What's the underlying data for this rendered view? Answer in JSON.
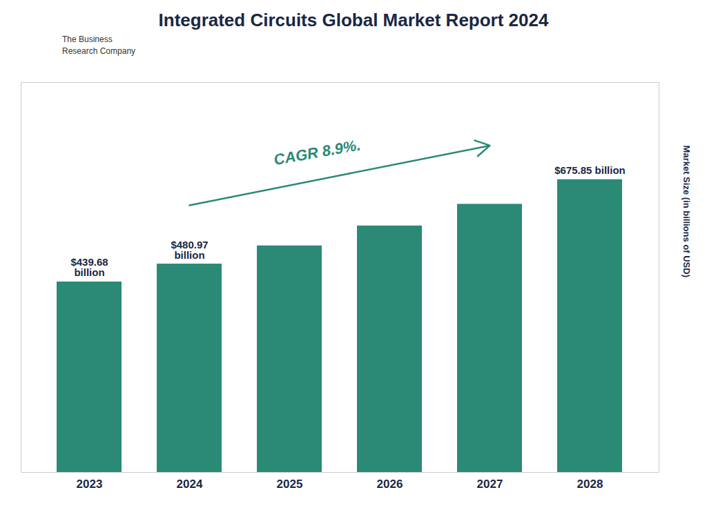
{
  "chart_data": {
    "type": "bar",
    "title": "Integrated Circuits Global Market Report 2024",
    "ylabel": "Market Size (in billions of USD)",
    "categories": [
      "2023",
      "2024",
      "2025",
      "2026",
      "2027",
      "2028"
    ],
    "values": [
      439.68,
      480.97,
      523.0,
      569.0,
      619.0,
      675.85
    ],
    "value_labels": [
      "$439.68\nbillion",
      "$480.97\nbillion",
      null,
      null,
      null,
      "$675.85 billion"
    ],
    "data_labels": true,
    "color": "#2a8a76",
    "ylim": [
      0,
      900
    ],
    "grid": false,
    "tick_labels": "x",
    "annotations": [
      "CAGR 8.9%.",
      "The Business\nResearch Company"
    ]
  }
}
